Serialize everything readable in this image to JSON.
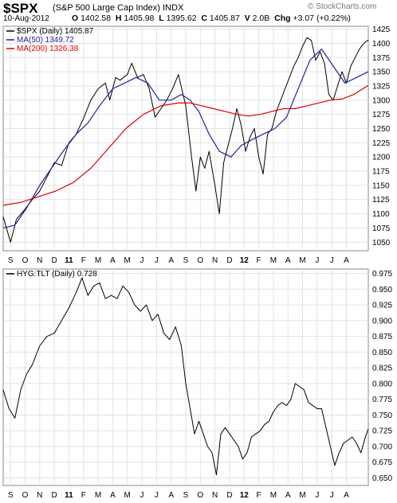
{
  "header": {
    "symbol": "$SPX",
    "name": "(S&P 500 Large Cap Index)  INDX",
    "brand": "© StockCharts.com",
    "date": "10-Aug-2012",
    "open_label": "O",
    "open": "1402.58",
    "high_label": "H",
    "high": "1405.98",
    "low_label": "L",
    "low": "1395.62",
    "close_label": "C",
    "close": "1405.87",
    "volume_label": "V",
    "volume": "2.0B",
    "change_label": "Chg",
    "change": "+3.07 (+0.22%)"
  },
  "chart_data": [
    {
      "type": "line",
      "title": "$SPX (Daily) 1405.87",
      "legend": [
        "$SPX (Daily) 1405.87",
        "MA(50) 1349.72",
        "MA(200) 1326.38"
      ],
      "legend_placement": "top-left",
      "x_ticks": [
        "S",
        "O",
        "N",
        "D",
        "11",
        "F",
        "M",
        "A",
        "M",
        "J",
        "J",
        "A",
        "S",
        "O",
        "N",
        "D",
        "12",
        "F",
        "M",
        "A",
        "M",
        "J",
        "J",
        "A"
      ],
      "ylim": [
        1035,
        1430
      ],
      "y_ticks": [
        1050,
        1075,
        1100,
        1125,
        1150,
        1175,
        1200,
        1225,
        1250,
        1275,
        1300,
        1325,
        1350,
        1375,
        1400,
        1425
      ],
      "y_axis_side": "right",
      "grid": true,
      "series": [
        {
          "name": "$SPX (Daily)",
          "color": "#000000",
          "points": [
            [
              0,
              1095
            ],
            [
              0.5,
              1050
            ],
            [
              0.9,
              1090
            ],
            [
              1.4,
              1105
            ],
            [
              2,
              1125
            ],
            [
              2.5,
              1140
            ],
            [
              3,
              1165
            ],
            [
              3.5,
              1190
            ],
            [
              4,
              1185
            ],
            [
              4.5,
              1225
            ],
            [
              5,
              1240
            ],
            [
              5.5,
              1268
            ],
            [
              6,
              1300
            ],
            [
              6.5,
              1320
            ],
            [
              7,
              1330
            ],
            [
              7.3,
              1300
            ],
            [
              7.7,
              1340
            ],
            [
              8,
              1335
            ],
            [
              8.5,
              1345
            ],
            [
              8.8,
              1365
            ],
            [
              9.2,
              1340
            ],
            [
              9.6,
              1345
            ],
            [
              10,
              1320
            ],
            [
              10.4,
              1270
            ],
            [
              10.8,
              1285
            ],
            [
              11.2,
              1300
            ],
            [
              11.6,
              1320
            ],
            [
              12,
              1345
            ],
            [
              12.5,
              1290
            ],
            [
              12.9,
              1200
            ],
            [
              13.2,
              1140
            ],
            [
              13.5,
              1200
            ],
            [
              13.8,
              1180
            ],
            [
              14.1,
              1210
            ],
            [
              14.5,
              1150
            ],
            [
              14.8,
              1100
            ],
            [
              15.1,
              1190
            ],
            [
              15.4,
              1220
            ],
            [
              15.7,
              1250
            ],
            [
              16,
              1285
            ],
            [
              16.3,
              1255
            ],
            [
              16.6,
              1210
            ],
            [
              16.9,
              1235
            ],
            [
              17.2,
              1250
            ],
            [
              17.5,
              1200
            ],
            [
              17.8,
              1170
            ],
            [
              18.1,
              1240
            ],
            [
              18.4,
              1250
            ],
            [
              18.7,
              1280
            ],
            [
              19,
              1300
            ],
            [
              19.3,
              1320
            ],
            [
              19.6,
              1340
            ],
            [
              19.9,
              1360
            ],
            [
              20.2,
              1375
            ],
            [
              20.5,
              1395
            ],
            [
              20.8,
              1410
            ],
            [
              21.1,
              1405
            ],
            [
              21.4,
              1370
            ],
            [
              21.7,
              1385
            ],
            [
              22,
              1365
            ],
            [
              22.3,
              1310
            ],
            [
              22.6,
              1300
            ],
            [
              22.9,
              1325
            ],
            [
              23.2,
              1350
            ],
            [
              23.5,
              1330
            ],
            [
              23.8,
              1360
            ],
            [
              24.1,
              1375
            ],
            [
              24.4,
              1390
            ],
            [
              24.7,
              1400
            ],
            [
              25,
              1406
            ]
          ]
        },
        {
          "name": "MA(50) 1349.72",
          "color": "#22229a",
          "points": [
            [
              0,
              1075
            ],
            [
              0.8,
              1080
            ],
            [
              1.6,
              1110
            ],
            [
              2.5,
              1150
            ],
            [
              3.3,
              1180
            ],
            [
              4.1,
              1210
            ],
            [
              5,
              1240
            ],
            [
              5.8,
              1260
            ],
            [
              6.6,
              1290
            ],
            [
              7.5,
              1320
            ],
            [
              8.3,
              1330
            ],
            [
              9.1,
              1340
            ],
            [
              9.9,
              1330
            ],
            [
              10.7,
              1300
            ],
            [
              11.5,
              1300
            ],
            [
              12.2,
              1310
            ],
            [
              12.8,
              1300
            ],
            [
              13.4,
              1280
            ],
            [
              14.1,
              1240
            ],
            [
              14.8,
              1210
            ],
            [
              15.6,
              1200
            ],
            [
              16.3,
              1220
            ],
            [
              17,
              1230
            ],
            [
              17.8,
              1240
            ],
            [
              18.6,
              1250
            ],
            [
              19.4,
              1270
            ],
            [
              20.2,
              1320
            ],
            [
              21,
              1370
            ],
            [
              21.8,
              1390
            ],
            [
              22.6,
              1360
            ],
            [
              23.4,
              1330
            ],
            [
              24.2,
              1340
            ],
            [
              25,
              1350
            ]
          ]
        },
        {
          "name": "MA(200) 1326.38",
          "color": "#dd0000",
          "points": [
            [
              0,
              1115
            ],
            [
              1.2,
              1120
            ],
            [
              2.4,
              1130
            ],
            [
              3.6,
              1140
            ],
            [
              4.8,
              1155
            ],
            [
              6,
              1180
            ],
            [
              7.2,
              1215
            ],
            [
              8.4,
              1250
            ],
            [
              9.6,
              1275
            ],
            [
              10.8,
              1290
            ],
            [
              12,
              1295
            ],
            [
              12.8,
              1295
            ],
            [
              13.6,
              1290
            ],
            [
              14.4,
              1285
            ],
            [
              15.2,
              1280
            ],
            [
              16,
              1275
            ],
            [
              16.8,
              1272
            ],
            [
              17.6,
              1275
            ],
            [
              18.4,
              1280
            ],
            [
              19.2,
              1285
            ],
            [
              20,
              1285
            ],
            [
              20.8,
              1290
            ],
            [
              21.6,
              1295
            ],
            [
              22.4,
              1300
            ],
            [
              23.2,
              1302
            ],
            [
              24,
              1310
            ],
            [
              25,
              1326
            ]
          ]
        }
      ]
    },
    {
      "type": "line",
      "title": "HYG:TLT (Daily) 0.728",
      "legend": [
        "HYG:TLT (Daily) 0.728"
      ],
      "legend_placement": "top-left",
      "x_ticks": [
        "S",
        "O",
        "N",
        "D",
        "11",
        "F",
        "M",
        "A",
        "M",
        "J",
        "J",
        "A",
        "S",
        "O",
        "N",
        "D",
        "12",
        "F",
        "M",
        "A",
        "M",
        "J",
        "J",
        "A"
      ],
      "ylim": [
        0.638,
        0.982
      ],
      "y_ticks": [
        0.65,
        0.675,
        0.7,
        0.725,
        0.75,
        0.775,
        0.8,
        0.825,
        0.85,
        0.875,
        0.9,
        0.925,
        0.95,
        0.975
      ],
      "y_axis_side": "right",
      "grid": true,
      "series": [
        {
          "name": "HYG:TLT (Daily)",
          "color": "#000000",
          "points": [
            [
              0,
              0.79
            ],
            [
              0.4,
              0.76
            ],
            [
              0.8,
              0.745
            ],
            [
              1.2,
              0.79
            ],
            [
              1.6,
              0.815
            ],
            [
              2,
              0.83
            ],
            [
              2.5,
              0.86
            ],
            [
              3,
              0.875
            ],
            [
              3.5,
              0.88
            ],
            [
              4,
              0.9
            ],
            [
              4.5,
              0.92
            ],
            [
              5,
              0.945
            ],
            [
              5.4,
              0.968
            ],
            [
              5.8,
              0.94
            ],
            [
              6.2,
              0.955
            ],
            [
              6.6,
              0.96
            ],
            [
              7,
              0.935
            ],
            [
              7.4,
              0.94
            ],
            [
              7.8,
              0.935
            ],
            [
              8.2,
              0.955
            ],
            [
              8.6,
              0.945
            ],
            [
              9,
              0.925
            ],
            [
              9.4,
              0.915
            ],
            [
              9.8,
              0.925
            ],
            [
              10.2,
              0.9
            ],
            [
              10.6,
              0.91
            ],
            [
              11,
              0.88
            ],
            [
              11.4,
              0.87
            ],
            [
              11.8,
              0.89
            ],
            [
              12.2,
              0.86
            ],
            [
              12.5,
              0.8
            ],
            [
              12.8,
              0.76
            ],
            [
              13.1,
              0.72
            ],
            [
              13.4,
              0.74
            ],
            [
              13.7,
              0.72
            ],
            [
              14,
              0.7
            ],
            [
              14.3,
              0.69
            ],
            [
              14.6,
              0.655
            ],
            [
              14.9,
              0.72
            ],
            [
              15.2,
              0.73
            ],
            [
              15.5,
              0.72
            ],
            [
              15.8,
              0.71
            ],
            [
              16.1,
              0.7
            ],
            [
              16.4,
              0.68
            ],
            [
              16.7,
              0.69
            ],
            [
              17,
              0.715
            ],
            [
              17.3,
              0.72
            ],
            [
              17.6,
              0.725
            ],
            [
              17.9,
              0.735
            ],
            [
              18.2,
              0.74
            ],
            [
              18.5,
              0.755
            ],
            [
              18.8,
              0.765
            ],
            [
              19.1,
              0.77
            ],
            [
              19.4,
              0.765
            ],
            [
              19.7,
              0.775
            ],
            [
              20,
              0.8
            ],
            [
              20.3,
              0.795
            ],
            [
              20.6,
              0.79
            ],
            [
              20.9,
              0.77
            ],
            [
              21.2,
              0.765
            ],
            [
              21.5,
              0.76
            ],
            [
              21.8,
              0.76
            ],
            [
              22.1,
              0.73
            ],
            [
              22.4,
              0.7
            ],
            [
              22.7,
              0.67
            ],
            [
              23,
              0.69
            ],
            [
              23.3,
              0.705
            ],
            [
              23.6,
              0.71
            ],
            [
              23.9,
              0.715
            ],
            [
              24.2,
              0.705
            ],
            [
              24.5,
              0.69
            ],
            [
              24.8,
              0.715
            ],
            [
              25,
              0.728
            ]
          ]
        }
      ]
    }
  ]
}
